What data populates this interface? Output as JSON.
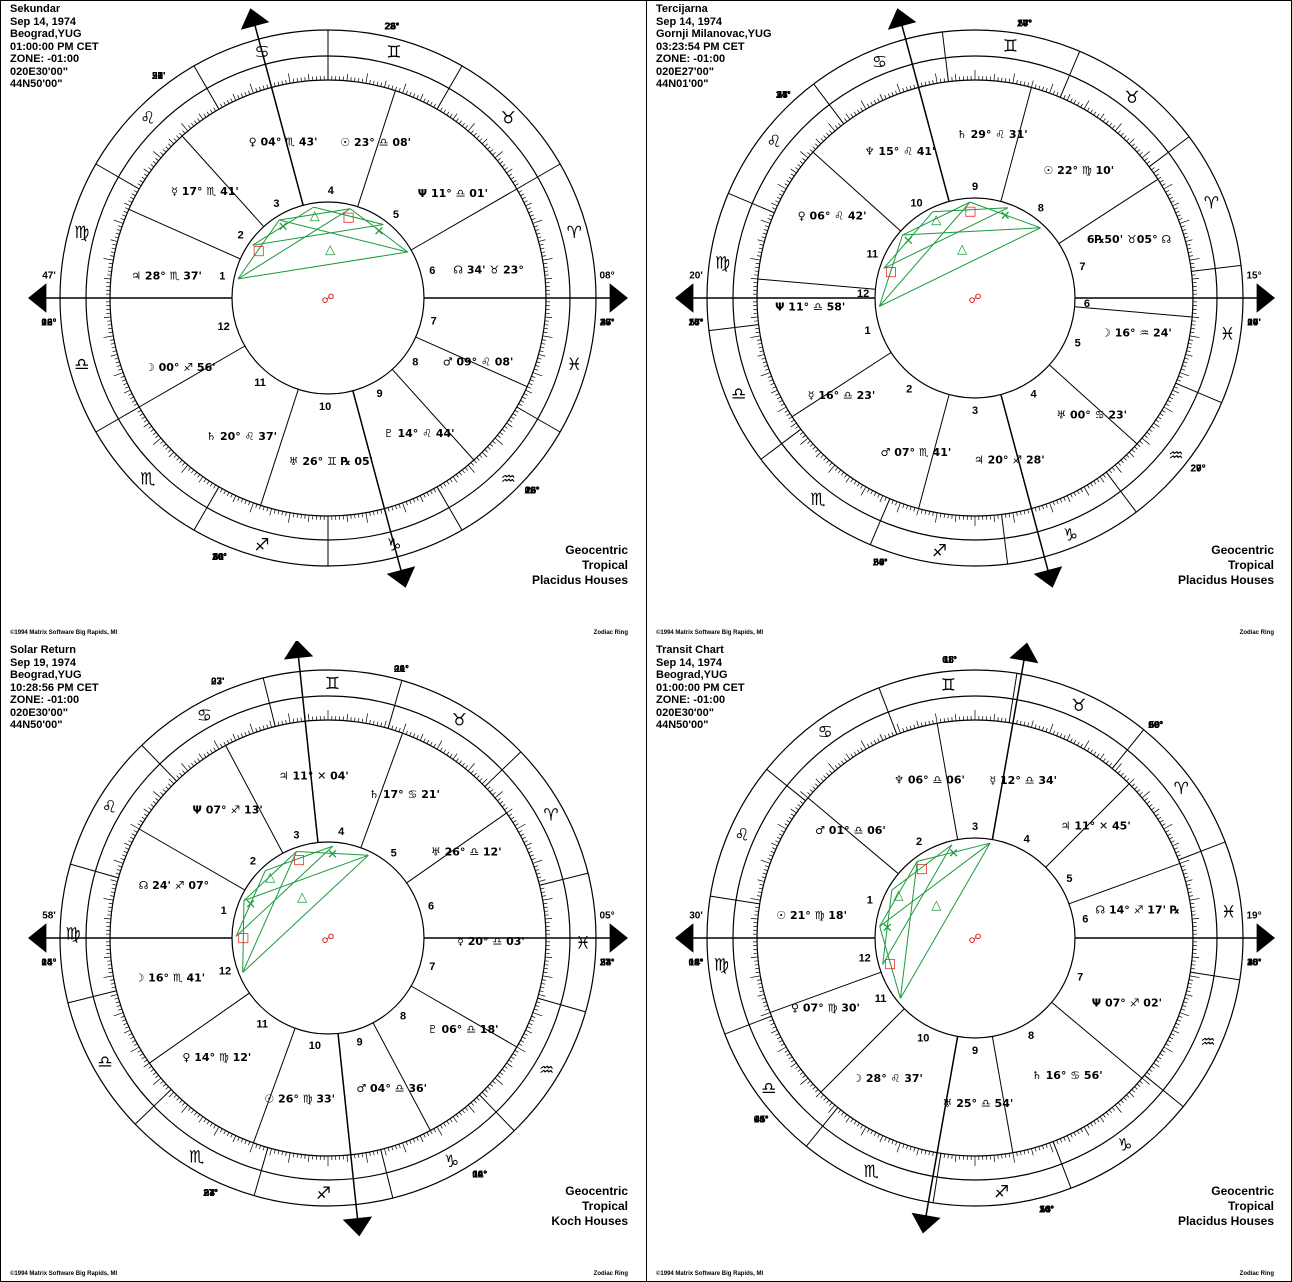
{
  "charts": [
    {
      "header": [
        "Sekundar",
        "Sep 14, 1974",
        "Beograd,YUG",
        "01:00:00 PM CET",
        "ZONE: -01:00",
        "020E30'00\"",
        "44N50'00\""
      ],
      "info": [
        "Geocentric",
        "Tropical",
        "Placidus Houses"
      ],
      "copyright": "",
      "ring_label": "",
      "houses": [
        "1",
        "2",
        "3",
        "4",
        "5",
        "6",
        "7",
        "8",
        "9",
        "10",
        "11",
        "12"
      ],
      "labels": [
        "08°",
        "47'",
        "08°",
        "47'",
        "12°",
        "51'",
        "12°",
        "51'",
        "26'",
        "20°",
        "26'",
        "20°",
        "23°",
        "27'",
        "23°",
        "27'",
        "00°",
        "30'",
        "00°",
        "30'",
        "28°",
        "46'",
        "28°",
        "46'",
        "20°",
        "26'"
      ],
      "planet_text": [
        "Ψ 11° ♎ 01'",
        "☉ 23° ♎ 08'",
        "♀ 04° ♏ 43'",
        "☿ 17° ♏ 41'",
        "♃ 28° ♏ 37'",
        "☽ 00° ♐ 56'",
        "♄ 20° ♌ 37'",
        "♅ 26° ♊ ℞ 05'",
        "♇ 14° ♌ 44'",
        "♂ 09° ♌ 08'",
        "☊ 34' ♉ 23°"
      ]
    },
    {
      "header": [
        "Tercijarna",
        "Sep 14, 1974",
        "Gornji Milanovac,YUG",
        "03:23:54 PM CET",
        "ZONE: -01:00",
        "020E27'00\"",
        "44N01'00\""
      ],
      "info": [
        "Geocentric",
        "Tropical",
        "Placidus Houses"
      ],
      "copyright": "©1994 Matrix Software  Big Rapids, MI",
      "ring_label": "Zodiac Ring",
      "houses": [
        "1",
        "2",
        "3",
        "4",
        "5",
        "6",
        "7",
        "8",
        "9",
        "10",
        "11",
        "12"
      ],
      "labels": [
        "15°",
        "20'",
        "15°",
        "20'",
        "14°",
        "55'",
        "14°",
        "55'",
        "27°",
        "14'",
        "27°",
        "14'",
        "20°",
        "09'",
        "20°",
        "09'",
        "57'",
        "24°",
        "57'",
        "24°",
        "29°",
        "27'",
        "29°",
        "27'"
      ],
      "planet_text": [
        "☉ 22° ♍ 10'",
        "♄ 29° ♌ 31'",
        "♆ 15° ♌ 41'",
        "♀ 06° ♌ 42'",
        "Ψ 11° ♎ 58'",
        "☿ 16° ♎ 23'",
        "♂ 07° ♏ 41'",
        "♃ 20° ♐ 28'",
        "♅ 00° ♋ 23'",
        "☽ 16° ♒ 24'",
        "6℞50' ♉05° ☊"
      ]
    },
    {
      "header": [
        "Solar Return",
        "Sep 19, 1974",
        "Beograd,YUG",
        "10:28:56 PM CET",
        "ZONE: -01:00",
        "020E30'00\"",
        "44N50'00\""
      ],
      "info": [
        "Geocentric",
        "Tropical",
        "Koch Houses"
      ],
      "copyright": "©1994 Matrix Software  Big Rapids, MI",
      "ring_label": "Zodiac Ring",
      "houses": [
        "1",
        "2",
        "3",
        "4",
        "5",
        "6",
        "7",
        "8",
        "9",
        "10",
        "11",
        "12"
      ],
      "labels": [
        "05°",
        "58'",
        "05°",
        "58'",
        "14°",
        "23'",
        "14°",
        "23'",
        "11'",
        "27°",
        "11'",
        "27°",
        "24°",
        "23'",
        "24°",
        "23'",
        "14°",
        "07'",
        "14°",
        "07'",
        "09°",
        "34'",
        "09°",
        "34'"
      ],
      "planet_text": [
        "♄ 17° ♋ 21'",
        "♃ 11° ✕ 04'",
        "Ψ 07° ♐ 13'",
        "☊ 24' ♐ 07°",
        "☽ 16° ♏ 41'",
        "♀ 14° ♍ 12'",
        "☉ 26° ♍ 33'",
        "♂ 04° ♎ 36'",
        "♇ 06° ♎ 18'",
        "☿ 20° ♎ 03'",
        "♅ 26° ♎ 12'"
      ]
    },
    {
      "header": [
        "Transit Chart",
        "Sep 14, 1974",
        "Beograd,YUG",
        "01:00:00 PM CET",
        "ZONE: -01:00",
        "020E30'00\"",
        "44N50'00\""
      ],
      "info": [
        "Geocentric",
        "Tropical",
        "Placidus Houses"
      ],
      "copyright": "©1994 Matrix Software  Big Rapids, MI",
      "ring_label": "Zodiac Ring",
      "houses": [
        "1",
        "2",
        "3",
        "4",
        "5",
        "6",
        "7",
        "8",
        "9",
        "10",
        "11",
        "12"
      ],
      "labels": [
        "19°",
        "30'",
        "19°",
        "30'",
        "14'",
        "01°",
        "14'",
        "01°",
        "26°",
        "45'",
        "26°",
        "45'",
        "09°",
        "18'",
        "09°",
        "18'",
        "14°",
        "45'",
        "14°",
        "45'",
        "50'",
        "10°",
        "50'",
        "10°"
      ],
      "planet_text": [
        "☿ 12° ♎ 34'",
        "♆ 06° ♎ 06'",
        "♂ 01° ♎ 06'",
        "☉ 21° ♍ 18'",
        "♀ 07° ♍ 30'",
        "☽ 28° ♌ 37'",
        "♅ 25° ♎ 54'",
        "♄ 16° ♋ 56'",
        "Ψ 07° ♐ 02'",
        "☊ 14° ♐ 17' ℞",
        "♃ 11° ✕ 45'"
      ]
    }
  ],
  "bottom_copyright": "©1994 Matrix Software  Big Rapids, MI",
  "bottom_ring_label": "Zodiac Ring",
  "colors": {
    "green": "#1a9a3a",
    "red": "#e02020",
    "black": "#000000"
  }
}
